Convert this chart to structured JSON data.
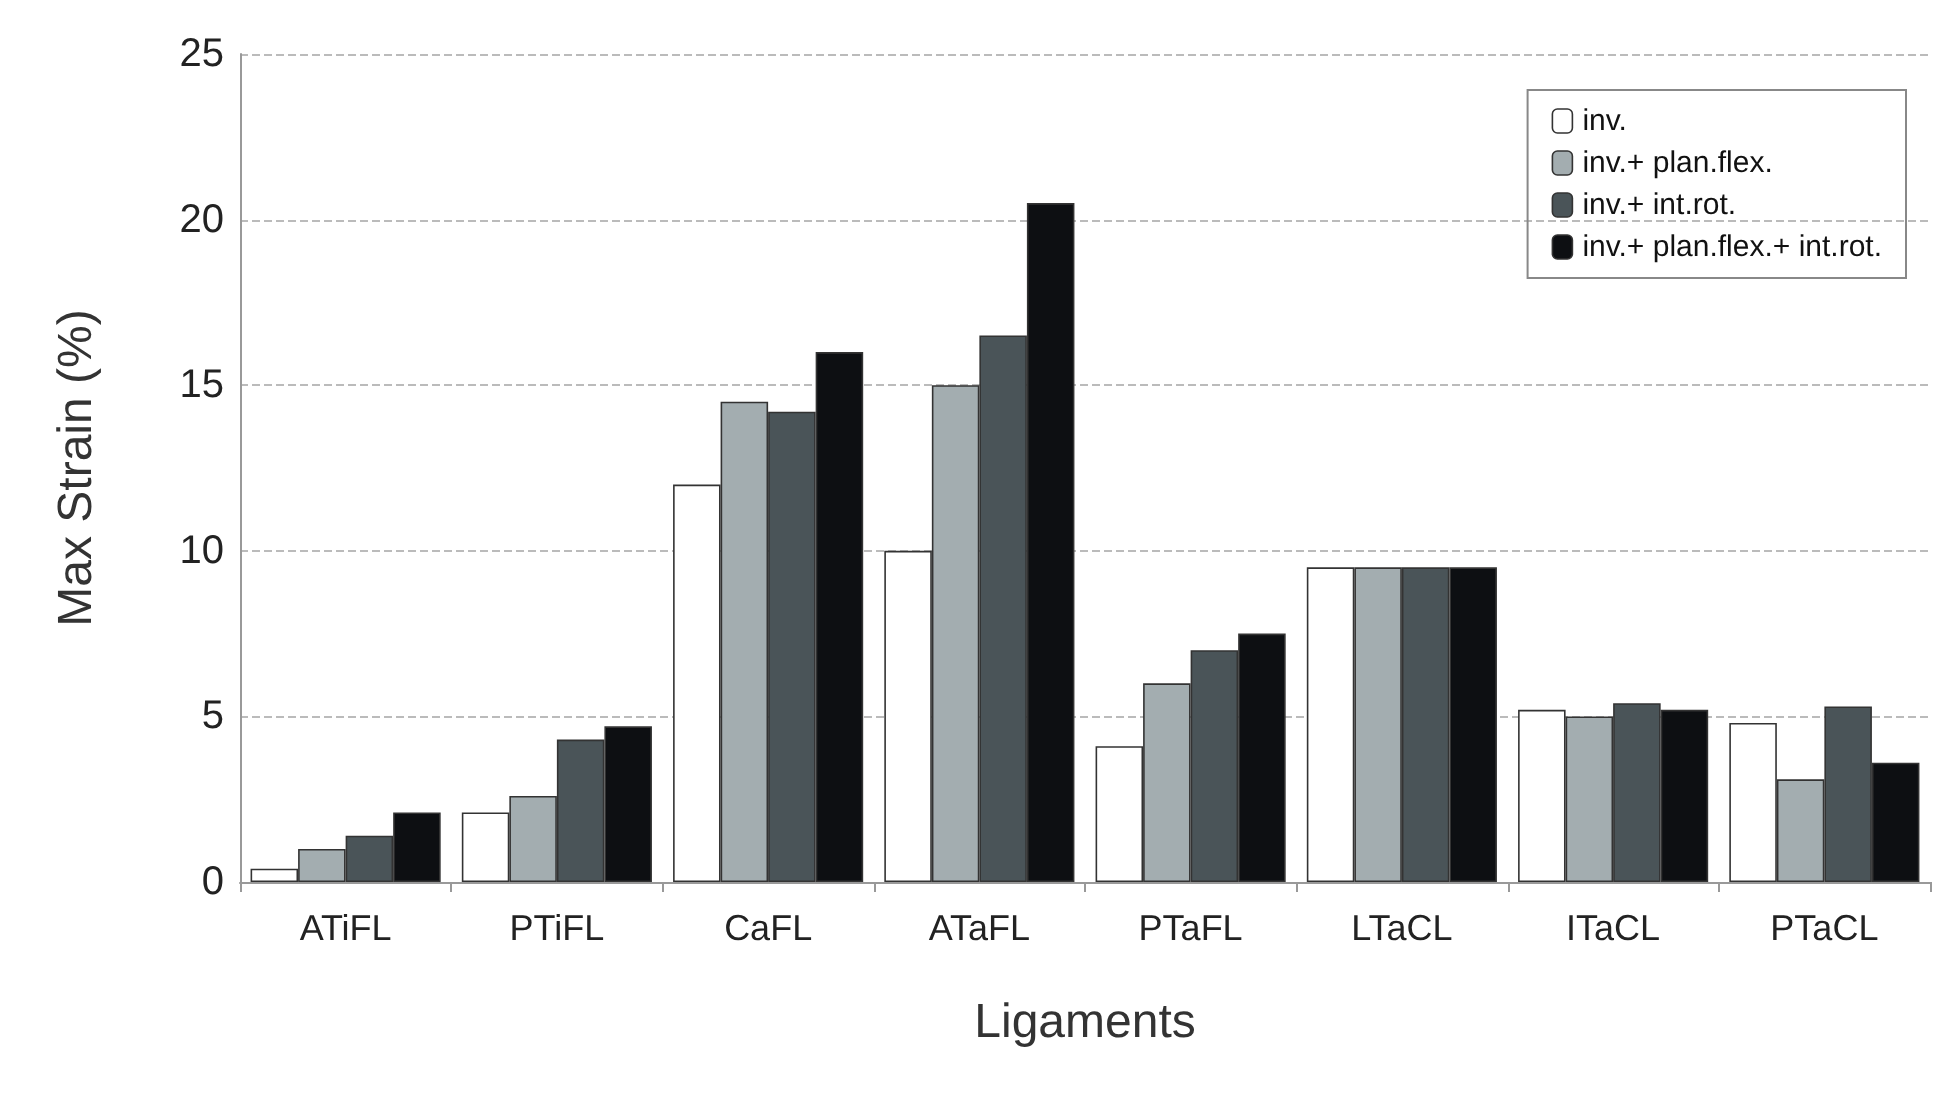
{
  "chart_data": {
    "type": "bar",
    "xlabel": "Ligaments",
    "ylabel": "Max Strain (%)",
    "categories": [
      "ATiFL",
      "PTiFL",
      "CaFL",
      "ATaFL",
      "PTaFL",
      "LTaCL",
      "ITaCL",
      "PTaCL"
    ],
    "series": [
      {
        "name": "inv.",
        "color": "#ffffff",
        "values": [
          0.4,
          2.1,
          12,
          10,
          4.1,
          9.5,
          5.2,
          4.8
        ]
      },
      {
        "name": "inv.+ plan.flex.",
        "color": "#a3adb0",
        "values": [
          1.0,
          2.6,
          14.5,
          15,
          6.0,
          9.5,
          5.0,
          3.1
        ]
      },
      {
        "name": "inv.+ int.rot.",
        "color": "#4a5458",
        "values": [
          1.4,
          4.3,
          14.2,
          16.5,
          7.0,
          9.5,
          5.4,
          5.3
        ]
      },
      {
        "name": "inv.+ plan.flex.+ int.rot.",
        "color": "#0d0f12",
        "values": [
          2.1,
          4.7,
          16,
          20.5,
          7.5,
          9.5,
          5.2,
          3.6
        ]
      }
    ],
    "ylim": [
      0,
      25
    ],
    "yticks": [
      0,
      5,
      10,
      15,
      20,
      25
    ],
    "grid": "y",
    "legend": "top right"
  }
}
